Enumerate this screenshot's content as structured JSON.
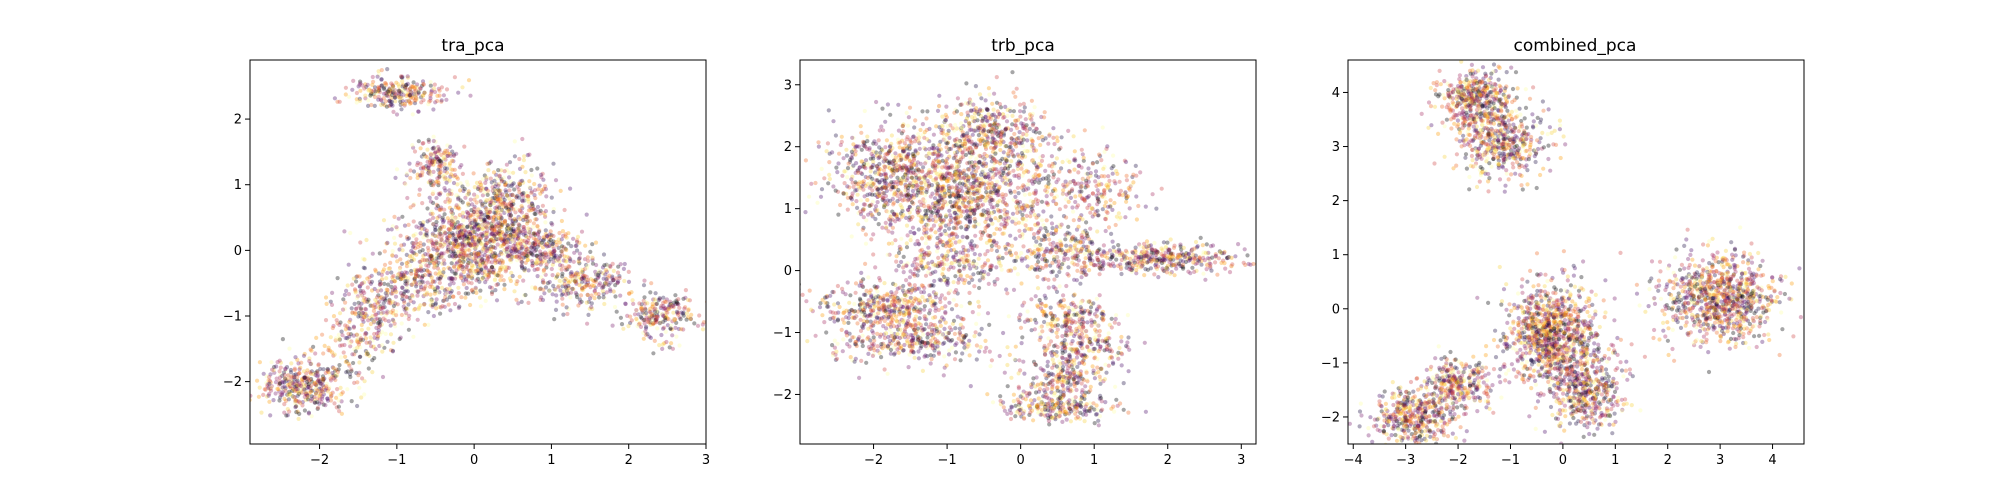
{
  "chart_data": [
    {
      "type": "scatter",
      "title": "tra_pca",
      "xlabel": "",
      "ylabel": "",
      "xlim": [
        -2.9,
        3.0
      ],
      "ylim": [
        -2.95,
        2.9
      ],
      "xticks": [
        -2,
        -1,
        0,
        1,
        2,
        3
      ],
      "yticks": [
        -2,
        -1,
        0,
        1,
        2
      ],
      "grid": false,
      "legend": "none",
      "colormap": "inferno",
      "point_alpha": 0.35,
      "clusters": [
        {
          "x": -2.2,
          "y": -2.05,
          "sx": 0.28,
          "sy": 0.2,
          "n": 380
        },
        {
          "x": -1.0,
          "y": 2.4,
          "sx": 0.3,
          "sy": 0.12,
          "n": 260
        },
        {
          "x": -0.5,
          "y": 1.3,
          "sx": 0.18,
          "sy": 0.22,
          "n": 180
        },
        {
          "x": 0.0,
          "y": 0.1,
          "sx": 0.5,
          "sy": 0.35,
          "n": 1100
        },
        {
          "x": 0.4,
          "y": 0.75,
          "sx": 0.3,
          "sy": 0.3,
          "n": 320
        },
        {
          "x": 1.4,
          "y": -0.5,
          "sx": 0.3,
          "sy": 0.18,
          "n": 260
        },
        {
          "x": 2.4,
          "y": -1.0,
          "sx": 0.22,
          "sy": 0.18,
          "n": 230
        },
        {
          "x": -1.3,
          "y": -0.9,
          "sx": 0.25,
          "sy": 0.35,
          "n": 240
        },
        {
          "x": -0.7,
          "y": -0.55,
          "sx": 0.3,
          "sy": 0.2,
          "n": 220
        },
        {
          "x": -1.6,
          "y": -1.5,
          "sx": 0.2,
          "sy": 0.25,
          "n": 90
        },
        {
          "x": 0.9,
          "y": 0.0,
          "sx": 0.3,
          "sy": 0.15,
          "n": 160
        }
      ]
    },
    {
      "type": "scatter",
      "title": "trb_pca",
      "xlabel": "",
      "ylabel": "",
      "xlim": [
        -3.0,
        3.2
      ],
      "ylim": [
        -2.8,
        3.4
      ],
      "xticks": [
        -2,
        -1,
        0,
        1,
        2,
        3
      ],
      "yticks": [
        -2,
        -1,
        0,
        1,
        2,
        3
      ],
      "grid": false,
      "legend": "none",
      "colormap": "inferno",
      "point_alpha": 0.35,
      "clusters": [
        {
          "x": -0.8,
          "y": 1.3,
          "sx": 0.7,
          "sy": 0.55,
          "n": 1500
        },
        {
          "x": -0.4,
          "y": 2.3,
          "sx": 0.4,
          "sy": 0.25,
          "n": 300
        },
        {
          "x": -1.9,
          "y": 1.6,
          "sx": 0.35,
          "sy": 0.35,
          "n": 320
        },
        {
          "x": 2.0,
          "y": 0.2,
          "sx": 0.55,
          "sy": 0.12,
          "n": 380
        },
        {
          "x": 1.0,
          "y": 1.3,
          "sx": 0.3,
          "sy": 0.3,
          "n": 200
        },
        {
          "x": -1.8,
          "y": -0.6,
          "sx": 0.45,
          "sy": 0.22,
          "n": 400
        },
        {
          "x": -1.5,
          "y": -1.1,
          "sx": 0.55,
          "sy": 0.2,
          "n": 350
        },
        {
          "x": -0.9,
          "y": 0.1,
          "sx": 0.4,
          "sy": 0.2,
          "n": 200
        },
        {
          "x": 0.6,
          "y": -0.75,
          "sx": 0.3,
          "sy": 0.15,
          "n": 200
        },
        {
          "x": 0.8,
          "y": -1.25,
          "sx": 0.35,
          "sy": 0.15,
          "n": 180
        },
        {
          "x": 0.6,
          "y": -1.75,
          "sx": 0.35,
          "sy": 0.15,
          "n": 180
        },
        {
          "x": 0.5,
          "y": -2.2,
          "sx": 0.4,
          "sy": 0.12,
          "n": 240
        },
        {
          "x": 0.6,
          "y": 0.3,
          "sx": 0.35,
          "sy": 0.25,
          "n": 250
        }
      ]
    },
    {
      "type": "scatter",
      "title": "combined_pca",
      "xlabel": "",
      "ylabel": "",
      "xlim": [
        -4.1,
        4.6
      ],
      "ylim": [
        -2.5,
        4.6
      ],
      "xticks": [
        -4,
        -3,
        -2,
        -1,
        0,
        1,
        2,
        3,
        4
      ],
      "yticks": [
        -2,
        -1,
        0,
        1,
        2,
        3,
        4
      ],
      "grid": false,
      "legend": "none",
      "colormap": "inferno",
      "point_alpha": 0.35,
      "clusters": [
        {
          "x": -1.7,
          "y": 3.9,
          "sx": 0.35,
          "sy": 0.25,
          "n": 420
        },
        {
          "x": -1.2,
          "y": 3.1,
          "sx": 0.45,
          "sy": 0.35,
          "n": 480
        },
        {
          "x": 3.0,
          "y": 0.2,
          "sx": 0.55,
          "sy": 0.4,
          "n": 900
        },
        {
          "x": -0.2,
          "y": -0.5,
          "sx": 0.45,
          "sy": 0.5,
          "n": 1000
        },
        {
          "x": 0.5,
          "y": -1.5,
          "sx": 0.35,
          "sy": 0.35,
          "n": 420
        },
        {
          "x": -2.9,
          "y": -2.0,
          "sx": 0.4,
          "sy": 0.25,
          "n": 420
        },
        {
          "x": -2.0,
          "y": -1.4,
          "sx": 0.35,
          "sy": 0.25,
          "n": 300
        }
      ]
    }
  ]
}
